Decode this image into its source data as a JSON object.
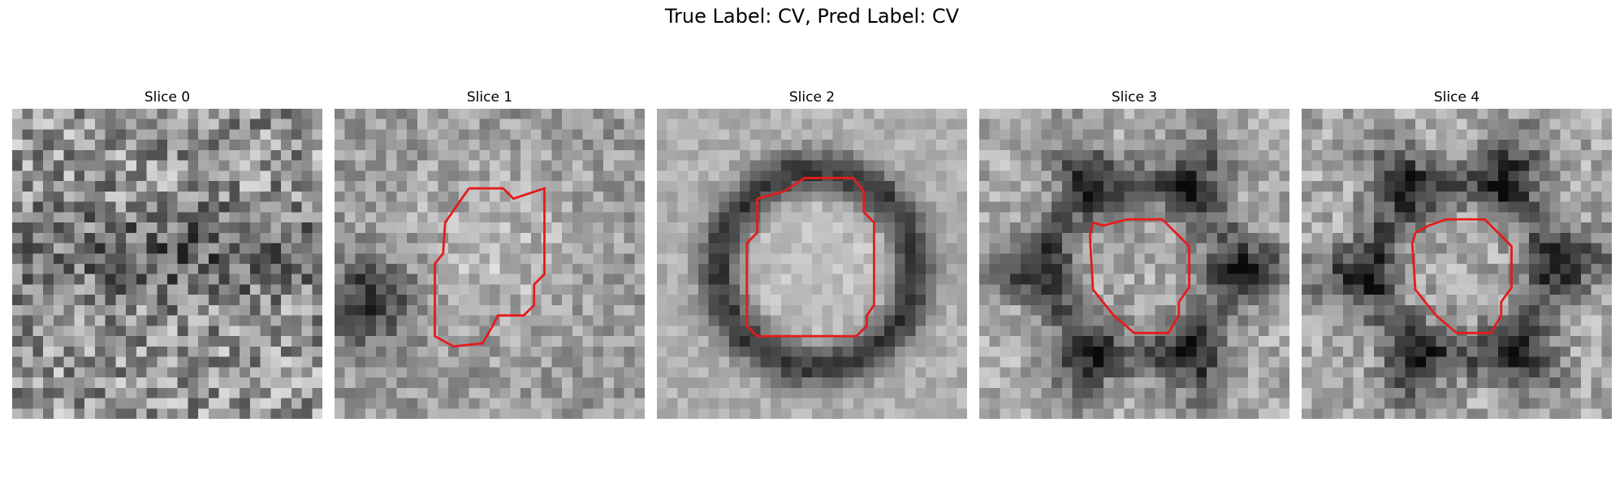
{
  "figure": {
    "title": "True Label: CV, Pred Label: CV"
  },
  "panels": [
    {
      "title": "Slice 0",
      "has_contour": false
    },
    {
      "title": "Slice 1",
      "has_contour": true
    },
    {
      "title": "Slice 2",
      "has_contour": true
    },
    {
      "title": "Slice 3",
      "has_contour": true
    },
    {
      "title": "Slice 4",
      "has_contour": true
    }
  ],
  "colors": {
    "contour": "#e61b1b",
    "background": "#ffffff"
  }
}
